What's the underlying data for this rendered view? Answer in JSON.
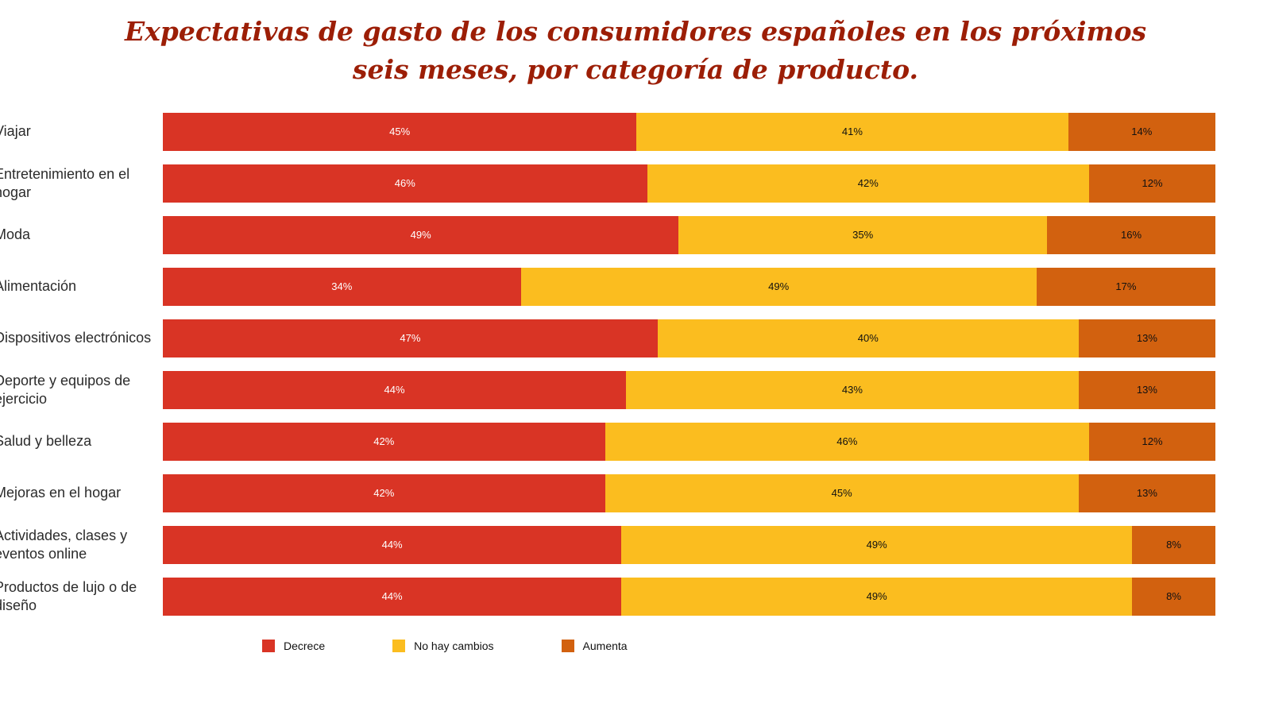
{
  "title": "Expectativas de gasto de los consumidores españoles en los próximos seis meses, por categoría de producto.",
  "colors": {
    "title_text": "#9c1e06",
    "decrease": "#d93425",
    "no_change": "#fbbd1f",
    "increase": "#d2610f",
    "background": "#ffffff"
  },
  "legend": [
    {
      "label": "Decrece",
      "color": "#d93425"
    },
    {
      "label": "No hay cambios",
      "color": "#fbbd1f"
    },
    {
      "label": "Aumenta",
      "color": "#d2610f"
    }
  ],
  "chart_data": {
    "type": "bar",
    "orientation": "horizontal",
    "stacked": true,
    "title": "Expectativas de gasto de los consumidores españoles en los próximos seis meses, por categoría de producto.",
    "value_suffix": "%",
    "legend_position": "bottom",
    "grid": false,
    "categories": [
      "Viajar",
      "Entretenimiento en el hogar",
      "Moda",
      "Alimentación",
      "Dispositivos electrónicos",
      "Deporte y equipos de ejercicio",
      "Salud y belleza",
      "Mejoras en el hogar",
      "Actividades, clases y eventos online",
      "Productos de lujo o de diseño"
    ],
    "series": [
      {
        "name": "Decrece",
        "key": "decrease",
        "color": "#d93425",
        "text_color": "#ffffff",
        "values": [
          45,
          46,
          49,
          34,
          47,
          44,
          42,
          42,
          44,
          44
        ]
      },
      {
        "name": "No hay cambios",
        "key": "no-change",
        "color": "#fbbd1f",
        "text_color": "#111111",
        "values": [
          41,
          42,
          35,
          49,
          40,
          43,
          46,
          45,
          49,
          49
        ]
      },
      {
        "name": "Aumenta",
        "key": "increase",
        "color": "#d2610f",
        "text_color": "#111111",
        "values": [
          14,
          12,
          16,
          17,
          13,
          13,
          12,
          13,
          8,
          8
        ]
      }
    ]
  }
}
